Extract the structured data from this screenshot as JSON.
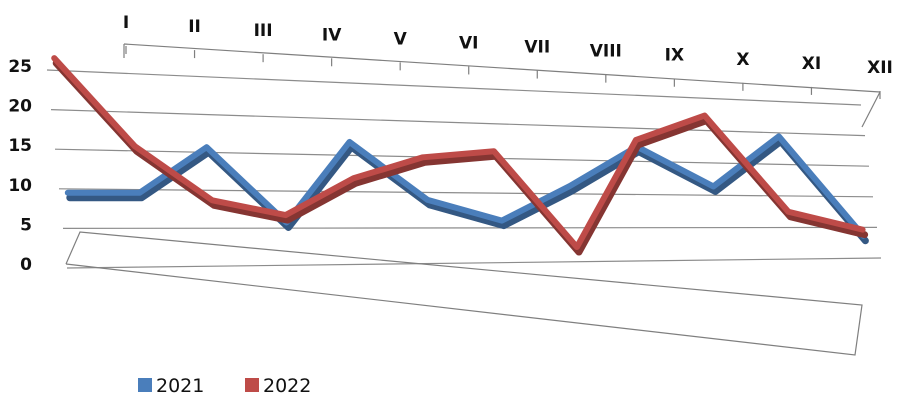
{
  "chart_data": {
    "type": "line",
    "title": "",
    "xlabel": "",
    "ylabel": "",
    "categories": [
      "I",
      "II",
      "III",
      "IV",
      "V",
      "VI",
      "VII",
      "VIII",
      "IX",
      "X",
      "XI",
      "XII"
    ],
    "ylim": [
      0,
      25
    ],
    "yticks": [
      "0",
      "5",
      "10",
      "15",
      "20",
      "25"
    ],
    "grid": true,
    "legend": "bottom-left",
    "series": [
      {
        "name": "2021",
        "color": "#4a7ebb",
        "values": [
          9,
          9,
          15,
          5,
          16,
          8,
          5,
          10,
          16,
          10,
          18,
          2
        ]
      },
      {
        "name": "2022",
        "color": "#be4b48",
        "values": [
          26,
          15,
          8,
          6,
          11,
          14,
          15,
          1,
          17,
          21,
          6,
          3
        ]
      }
    ]
  }
}
